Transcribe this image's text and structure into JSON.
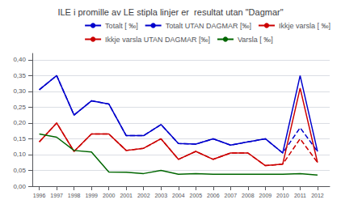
{
  "chart_data": {
    "type": "line",
    "title": "ILE i promille av LE stipla linjer er  resultat utan \"Dagmar\"",
    "x": [
      1996,
      1997,
      1998,
      1999,
      2000,
      2001,
      2002,
      2003,
      2004,
      2005,
      2006,
      2007,
      2008,
      2009,
      2010,
      2011,
      2012
    ],
    "series": [
      {
        "name": "Totalt [ ‰]",
        "color": "#0000CC",
        "line_style": "solid",
        "values": [
          0.305,
          0.35,
          0.225,
          0.27,
          0.26,
          0.16,
          0.16,
          0.195,
          0.135,
          0.133,
          0.15,
          0.13,
          0.14,
          0.15,
          0.105,
          0.35,
          0.11
        ]
      },
      {
        "name": "Totalt UTAN DAGMAR [‰]",
        "color": "#0000CC",
        "line_style": "dashed",
        "values": [
          0.305,
          0.35,
          0.225,
          0.27,
          0.26,
          0.16,
          0.16,
          0.195,
          0.135,
          0.133,
          0.15,
          0.13,
          0.14,
          0.15,
          0.105,
          0.185,
          0.11
        ]
      },
      {
        "name": "Ikkje varsla [ ‰]",
        "color": "#CC0000",
        "line_style": "solid",
        "values": [
          0.14,
          0.2,
          0.11,
          0.165,
          0.165,
          0.113,
          0.12,
          0.15,
          0.085,
          0.11,
          0.085,
          0.105,
          0.105,
          0.065,
          0.07,
          0.31,
          0.075
        ]
      },
      {
        "name": "Ikkje varsla UTAN DAGMAR [‰]",
        "color": "#CC0000",
        "line_style": "dashed",
        "values": [
          0.14,
          0.2,
          0.11,
          0.165,
          0.165,
          0.113,
          0.12,
          0.15,
          0.085,
          0.11,
          0.085,
          0.105,
          0.105,
          0.065,
          0.07,
          0.15,
          0.075
        ]
      },
      {
        "name": "Varsla [ ‰]",
        "color": "#006600",
        "line_style": "solid",
        "values": [
          0.165,
          0.155,
          0.113,
          0.108,
          0.045,
          0.044,
          0.04,
          0.05,
          0.038,
          0.04,
          0.038,
          0.038,
          0.038,
          0.038,
          0.038,
          0.04,
          0.035
        ]
      }
    ],
    "xlim": [
      1995.6,
      2012.7
    ],
    "xticks": [
      1996,
      1997,
      1998,
      1999,
      2000,
      2001,
      2002,
      2003,
      2004,
      2005,
      2006,
      2007,
      2008,
      2009,
      2010,
      2011,
      2012
    ],
    "ylim": [
      0.0,
      0.42
    ],
    "yticks": [
      {
        "value": 0.0,
        "label": "0,00"
      },
      {
        "value": 0.05,
        "label": "0,05"
      },
      {
        "value": 0.1,
        "label": "0,10"
      },
      {
        "value": 0.15,
        "label": "0,15"
      },
      {
        "value": 0.2,
        "label": "0,20"
      },
      {
        "value": 0.25,
        "label": "0,25"
      },
      {
        "value": 0.3,
        "label": "0,30"
      },
      {
        "value": 0.35,
        "label": "0,35"
      },
      {
        "value": 0.4,
        "label": "0,40"
      }
    ],
    "grid": true,
    "legend": "upper right"
  }
}
